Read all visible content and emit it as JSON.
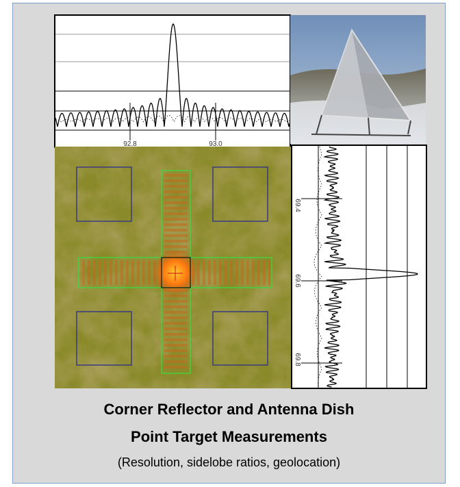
{
  "figure": {
    "plot_top": {
      "tick_labels": [
        "92.8",
        "93.0"
      ]
    },
    "plot_right": {
      "tick_labels": [
        "69.4",
        "69.6",
        "69.8"
      ]
    }
  },
  "caption": {
    "title_lines": [
      "Corner Reflector and Antenna Dish",
      "Point Target Measurements"
    ],
    "subtitle": "(Resolution, sidelobe ratios, geolocation)"
  }
}
